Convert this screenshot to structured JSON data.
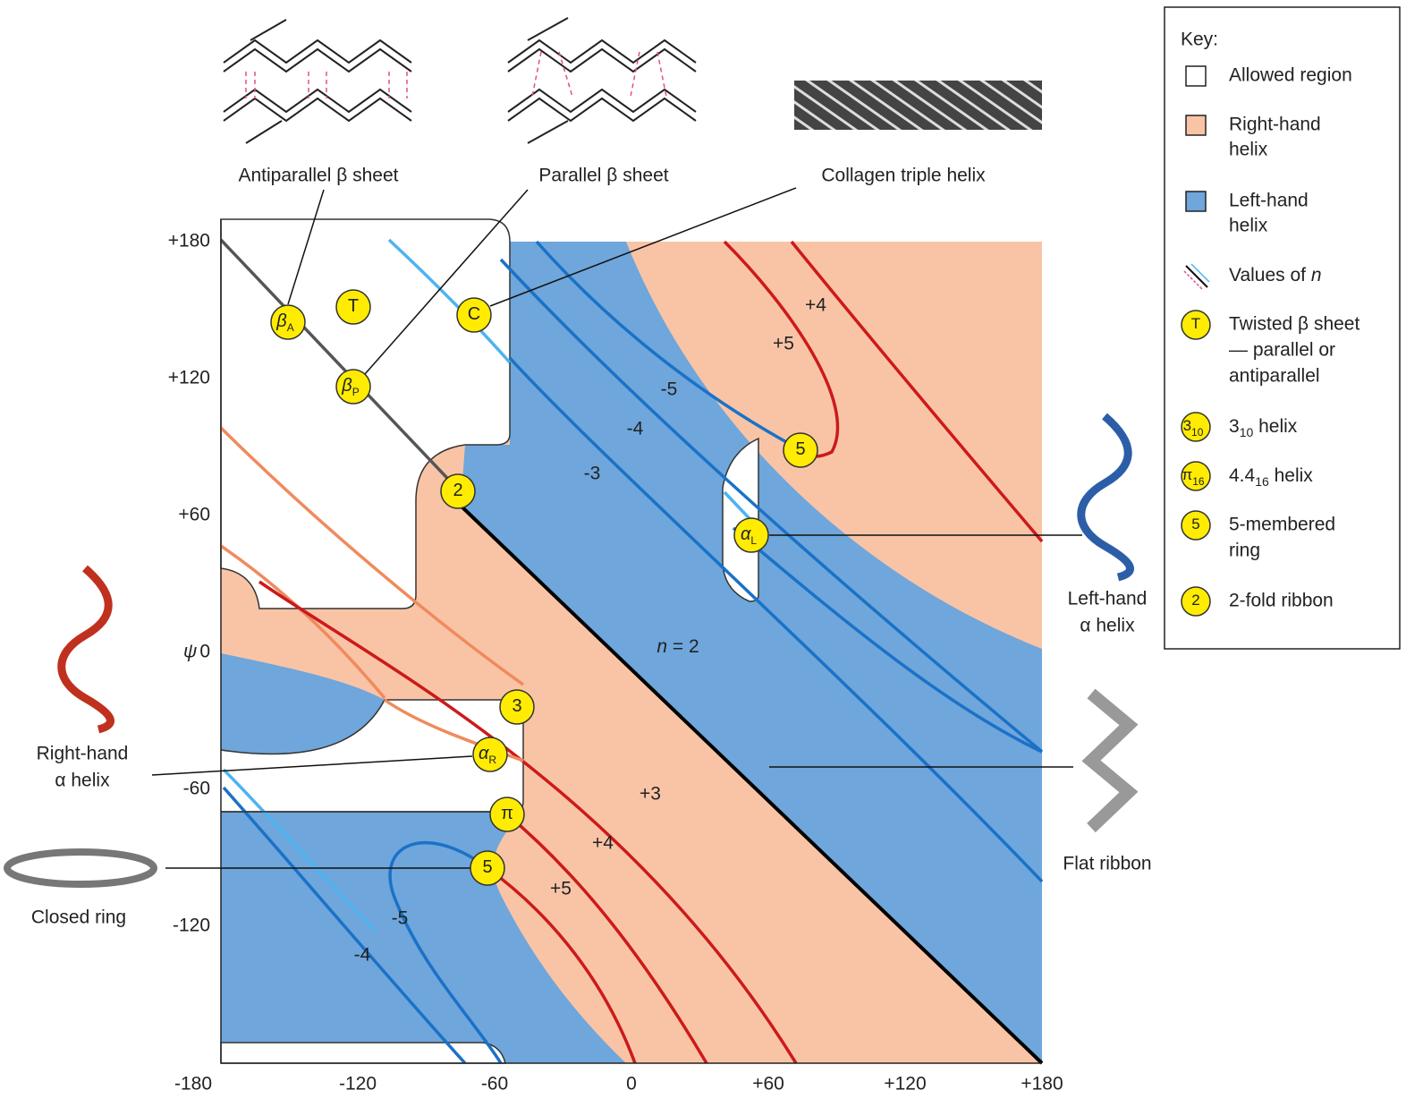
{
  "x_axis": {
    "ticks": [
      "-180",
      "-120",
      "-60",
      "0",
      "+60",
      "+120",
      "+180"
    ]
  },
  "y_axis": {
    "label": "ψ",
    "ticks": [
      "+180",
      "+120",
      "+60",
      "0",
      "-60",
      "-120"
    ]
  },
  "structures": {
    "antiparallel": "Antiparallel β sheet",
    "parallel": "Parallel β sheet",
    "collagen": "Collagen triple helix",
    "left_alpha": [
      "Left-hand",
      "α helix"
    ],
    "right_alpha": [
      "Right-hand",
      "α helix"
    ],
    "flat_ribbon": "Flat ribbon",
    "closed_ring": "Closed ring"
  },
  "markers": [
    {
      "symbol": "β",
      "sub": "A"
    },
    {
      "symbol": "T"
    },
    {
      "symbol": "C"
    },
    {
      "symbol": "β",
      "sub": "P"
    },
    {
      "symbol": "2"
    },
    {
      "symbol": "5"
    },
    {
      "symbol": "α",
      "sub": "L"
    },
    {
      "symbol": "3"
    },
    {
      "symbol": "α",
      "sub": "R"
    },
    {
      "symbol": "π"
    },
    {
      "symbol": "5"
    }
  ],
  "contour_labels": {
    "upper": [
      "+4",
      "+5",
      "-5",
      "-4",
      "-3"
    ],
    "n2": {
      "var": "n",
      "text": " = 2"
    },
    "lower": [
      "+3",
      "+4",
      "+5",
      "-5",
      "-4"
    ]
  },
  "key": {
    "title": "Key:",
    "items": [
      {
        "lines": [
          "Allowed region"
        ]
      },
      {
        "lines": [
          "Right-hand",
          "helix"
        ]
      },
      {
        "lines": [
          "Left-hand",
          "helix"
        ]
      },
      {
        "text": "Values of ",
        "var": "n"
      },
      {
        "symbol": "T",
        "lines": [
          "Twisted β sheet",
          "— parallel or",
          "antiparallel"
        ]
      },
      {
        "symbol": "3",
        "text": "3",
        "sub": "10",
        "rest": " helix"
      },
      {
        "symbol": "π",
        "text": "4.4",
        "sub": "16",
        "rest": " helix"
      },
      {
        "symbol": "5",
        "lines": [
          "5-membered",
          "ring"
        ]
      },
      {
        "symbol": "2",
        "lines": [
          "2-fold ribbon"
        ]
      }
    ]
  }
}
